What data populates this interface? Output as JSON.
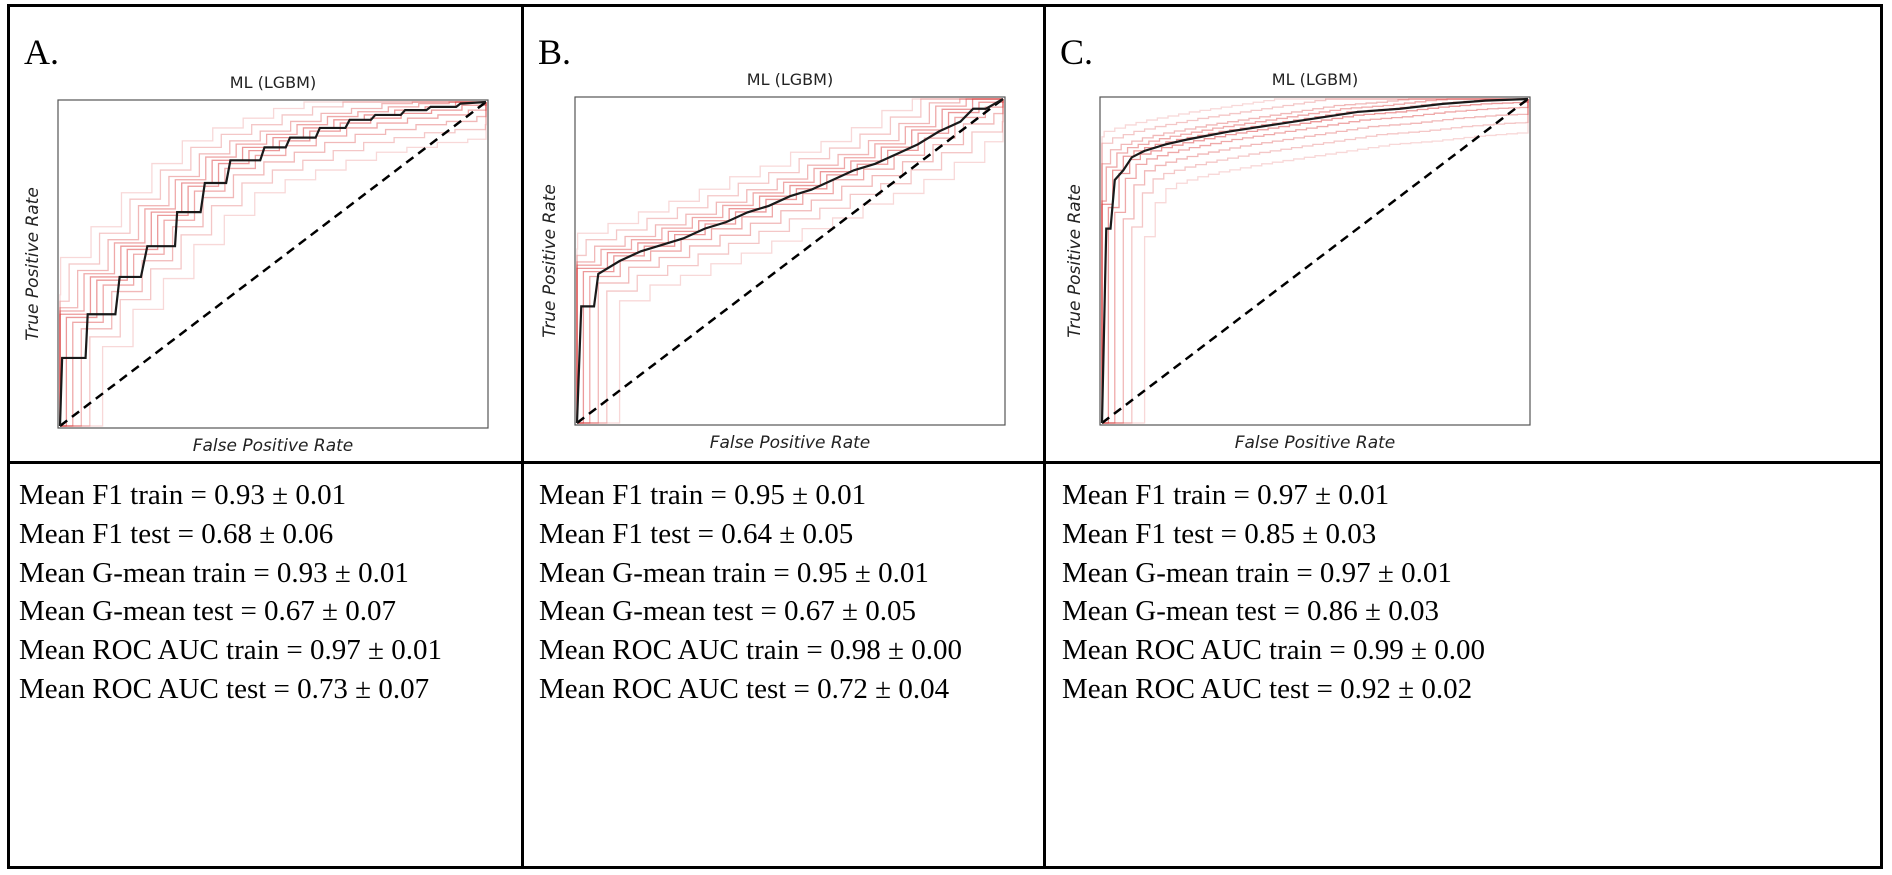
{
  "panels": [
    {
      "letter": "A.",
      "stats": [
        "Mean F1 train = 0.93 ± 0.01",
        "Mean F1 test = 0.68 ± 0.06",
        "Mean G-mean train = 0.93 ± 0.01",
        "Mean G-mean test = 0.67 ± 0.07",
        "Mean ROC AUC train = 0.97 ± 0.01",
        "Mean ROC AUC test = 0.73 ± 0.07"
      ]
    },
    {
      "letter": "B.",
      "stats": [
        "Mean F1 train = 0.95 ± 0.01",
        "Mean F1 test = 0.64 ± 0.05",
        "Mean G-mean train = 0.95 ± 0.01",
        "Mean G-mean test = 0.67 ± 0.05",
        "Mean ROC AUC train = 0.98 ± 0.00",
        "Mean ROC AUC test = 0.72 ± 0.04"
      ]
    },
    {
      "letter": "C.",
      "stats": [
        "Mean F1 train = 0.97 ± 0.01",
        "Mean F1 test = 0.85 ± 0.03",
        "Mean G-mean train = 0.97 ± 0.01",
        "Mean G-mean test = 0.86 ± 0.03",
        "Mean ROC AUC train = 0.99 ± 0.00",
        "Mean ROC AUC test = 0.92 ± 0.02"
      ]
    }
  ],
  "chart_data": [
    {
      "type": "line",
      "title": "ML (LGBM)",
      "xlabel": "False Positive Rate",
      "ylabel": "True Positive Rate",
      "xlim": [
        0,
        1
      ],
      "ylim": [
        0,
        1
      ],
      "colors": {
        "mean": "#1a1a1a",
        "folds": "#d62728",
        "chance": "#000000"
      },
      "series": [
        {
          "name": "mean ROC",
          "x": [
            0,
            0.005,
            0.06,
            0.065,
            0.13,
            0.14,
            0.19,
            0.205,
            0.27,
            0.275,
            0.33,
            0.34,
            0.39,
            0.4,
            0.47,
            0.48,
            0.53,
            0.54,
            0.6,
            0.61,
            0.67,
            0.68,
            0.73,
            0.74,
            0.8,
            0.81,
            0.86,
            0.87,
            0.93,
            0.94,
            1
          ],
          "y": [
            0,
            0.21,
            0.21,
            0.345,
            0.345,
            0.46,
            0.46,
            0.555,
            0.555,
            0.66,
            0.66,
            0.75,
            0.75,
            0.82,
            0.82,
            0.86,
            0.86,
            0.89,
            0.89,
            0.92,
            0.92,
            0.945,
            0.945,
            0.96,
            0.96,
            0.975,
            0.975,
            0.985,
            0.985,
            0.995,
            1
          ]
        },
        {
          "name": "chance",
          "x": [
            0,
            1
          ],
          "y": [
            0,
            1
          ]
        }
      ]
    },
    {
      "type": "line",
      "title": "ML (LGBM)",
      "xlabel": "False Positive Rate",
      "ylabel": "True Positive Rate",
      "xlim": [
        0,
        1
      ],
      "ylim": [
        0,
        1
      ],
      "colors": {
        "mean": "#1a1a1a",
        "folds": "#d62728",
        "chance": "#000000"
      },
      "series": [
        {
          "name": "mean ROC",
          "x": [
            0,
            0.01,
            0.04,
            0.05,
            0.1,
            0.15,
            0.2,
            0.25,
            0.3,
            0.35,
            0.4,
            0.45,
            0.5,
            0.55,
            0.6,
            0.65,
            0.7,
            0.75,
            0.8,
            0.85,
            0.9,
            0.93,
            0.96,
            1
          ],
          "y": [
            0,
            0.36,
            0.36,
            0.46,
            0.5,
            0.53,
            0.55,
            0.57,
            0.6,
            0.62,
            0.65,
            0.67,
            0.7,
            0.72,
            0.75,
            0.78,
            0.8,
            0.83,
            0.86,
            0.9,
            0.93,
            0.97,
            0.97,
            1
          ]
        },
        {
          "name": "chance",
          "x": [
            0,
            1
          ],
          "y": [
            0,
            1
          ]
        }
      ]
    },
    {
      "type": "line",
      "title": "ML (LGBM)",
      "xlabel": "False Positive Rate",
      "ylabel": "True Positive Rate",
      "xlim": [
        0,
        1
      ],
      "ylim": [
        0,
        1
      ],
      "colors": {
        "mean": "#1a1a1a",
        "folds": "#d62728",
        "chance": "#000000"
      },
      "series": [
        {
          "name": "mean ROC",
          "x": [
            0,
            0.01,
            0.02,
            0.03,
            0.05,
            0.07,
            0.1,
            0.15,
            0.2,
            0.3,
            0.4,
            0.5,
            0.6,
            0.7,
            0.8,
            0.9,
            1
          ],
          "y": [
            0,
            0.6,
            0.6,
            0.75,
            0.78,
            0.82,
            0.84,
            0.86,
            0.875,
            0.9,
            0.92,
            0.94,
            0.96,
            0.97,
            0.985,
            0.995,
            1
          ]
        },
        {
          "name": "chance",
          "x": [
            0,
            1
          ],
          "y": [
            0,
            1
          ]
        }
      ]
    }
  ]
}
